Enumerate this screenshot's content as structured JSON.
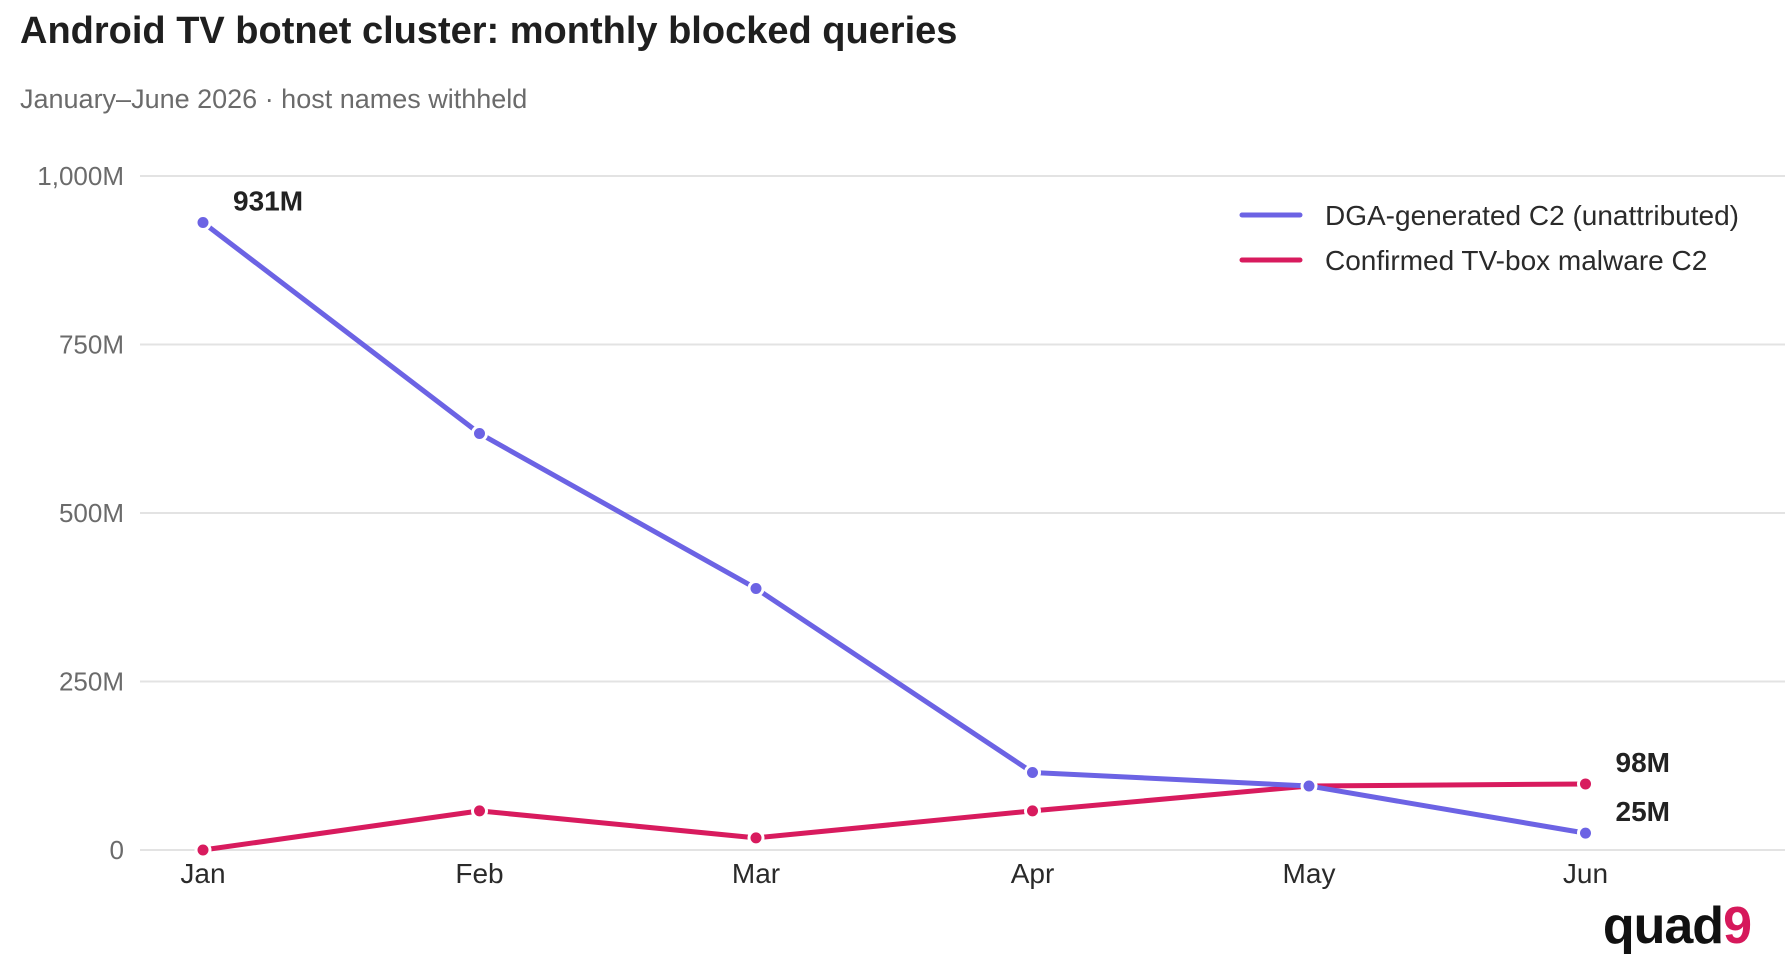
{
  "title": "Android TV botnet cluster: monthly blocked queries",
  "subtitle": "January–June 2026 · host names withheld",
  "logo": {
    "text": "quad",
    "accent": "9"
  },
  "chart_data": {
    "type": "line",
    "categories": [
      "Jan",
      "Feb",
      "Mar",
      "Apr",
      "May",
      "Jun"
    ],
    "ylim": [
      0,
      1000
    ],
    "yticks": [
      {
        "value": 0,
        "label": "0"
      },
      {
        "value": 250,
        "label": "250M"
      },
      {
        "value": 500,
        "label": "500M"
      },
      {
        "value": 750,
        "label": "750M"
      },
      {
        "value": 1000,
        "label": "1,000M"
      }
    ],
    "grid": true,
    "legend_position": "top-right",
    "series": [
      {
        "name": "DGA-generated C2 (unattributed)",
        "color": "#6c63e4",
        "values": [
          931,
          618,
          388,
          115,
          95,
          25
        ]
      },
      {
        "name": "Confirmed TV-box malware C2",
        "color": "#d81b5e",
        "values": [
          0,
          58,
          18,
          58,
          95,
          98
        ]
      }
    ],
    "annotations": [
      {
        "series": 0,
        "index": 0,
        "label": "931M"
      },
      {
        "series": 1,
        "index": 5,
        "label": "98M"
      },
      {
        "series": 0,
        "index": 5,
        "label": "25M"
      }
    ]
  }
}
